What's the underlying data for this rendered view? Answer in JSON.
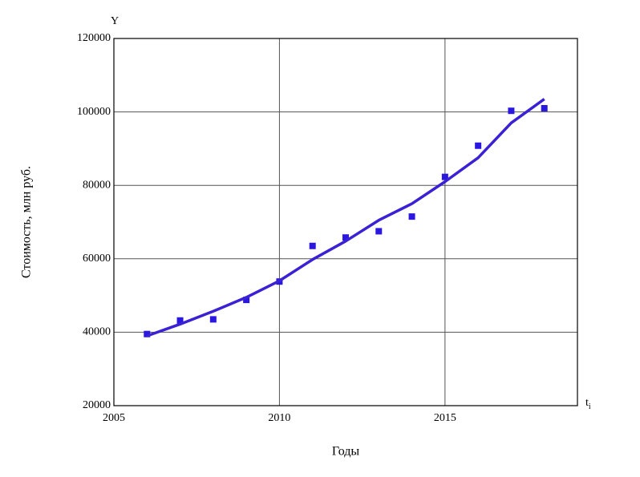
{
  "chart_data": {
    "type": "line",
    "y_axis_top_label": "Y",
    "x_axis_end_label": "t",
    "x_axis_end_label_subscript": "i",
    "y_axis_label": "Стоимость, млн руб.",
    "x_axis_label": "Годы",
    "x": [
      2006,
      2007,
      2008,
      2009,
      2010,
      2011,
      2012,
      2013,
      2014,
      2015,
      2016,
      2017,
      2018
    ],
    "series": [
      {
        "mode": "markers",
        "color": "#2b18e0",
        "values": [
          39500,
          43200,
          43500,
          48800,
          53800,
          63500,
          65800,
          67500,
          71500,
          82300,
          90800,
          100300,
          101000
        ]
      },
      {
        "mode": "line",
        "color": "#3a22d4",
        "values": [
          39000,
          42200,
          45700,
          49500,
          54000,
          59800,
          64800,
          70500,
          75000,
          81000,
          87500,
          97000,
          103500
        ]
      }
    ],
    "xlim": [
      2005,
      2019
    ],
    "xticks": [
      2005,
      2010,
      2015
    ],
    "ylim": [
      20000,
      120000
    ],
    "yticks": [
      20000,
      40000,
      60000,
      80000,
      100000,
      120000
    ],
    "grid": true
  }
}
